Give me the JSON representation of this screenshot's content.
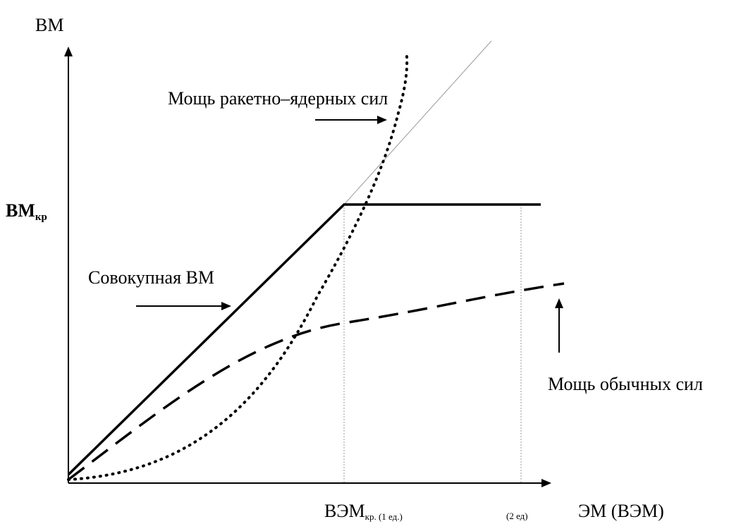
{
  "axes": {
    "y_label": "ВМ",
    "x_label": "ЭМ (ВЭМ)"
  },
  "markers": {
    "vm_critical": {
      "main": "ВМ",
      "sub": "кр"
    },
    "vem_critical": {
      "main": "ВЭМ",
      "sub": "кр. (1 ед.)"
    },
    "two_units": "(2 ед)"
  },
  "curves": {
    "total": {
      "label": "Совокупная ВМ",
      "style": "solid"
    },
    "nuclear": {
      "label": "Мощь ракетно–ядерных сил",
      "style": "dotted"
    },
    "conventional": {
      "label": "Мощь обычных сил",
      "style": "dashed"
    }
  },
  "colors": {
    "ink": "#000000",
    "guide": "#9a9a9a"
  }
}
